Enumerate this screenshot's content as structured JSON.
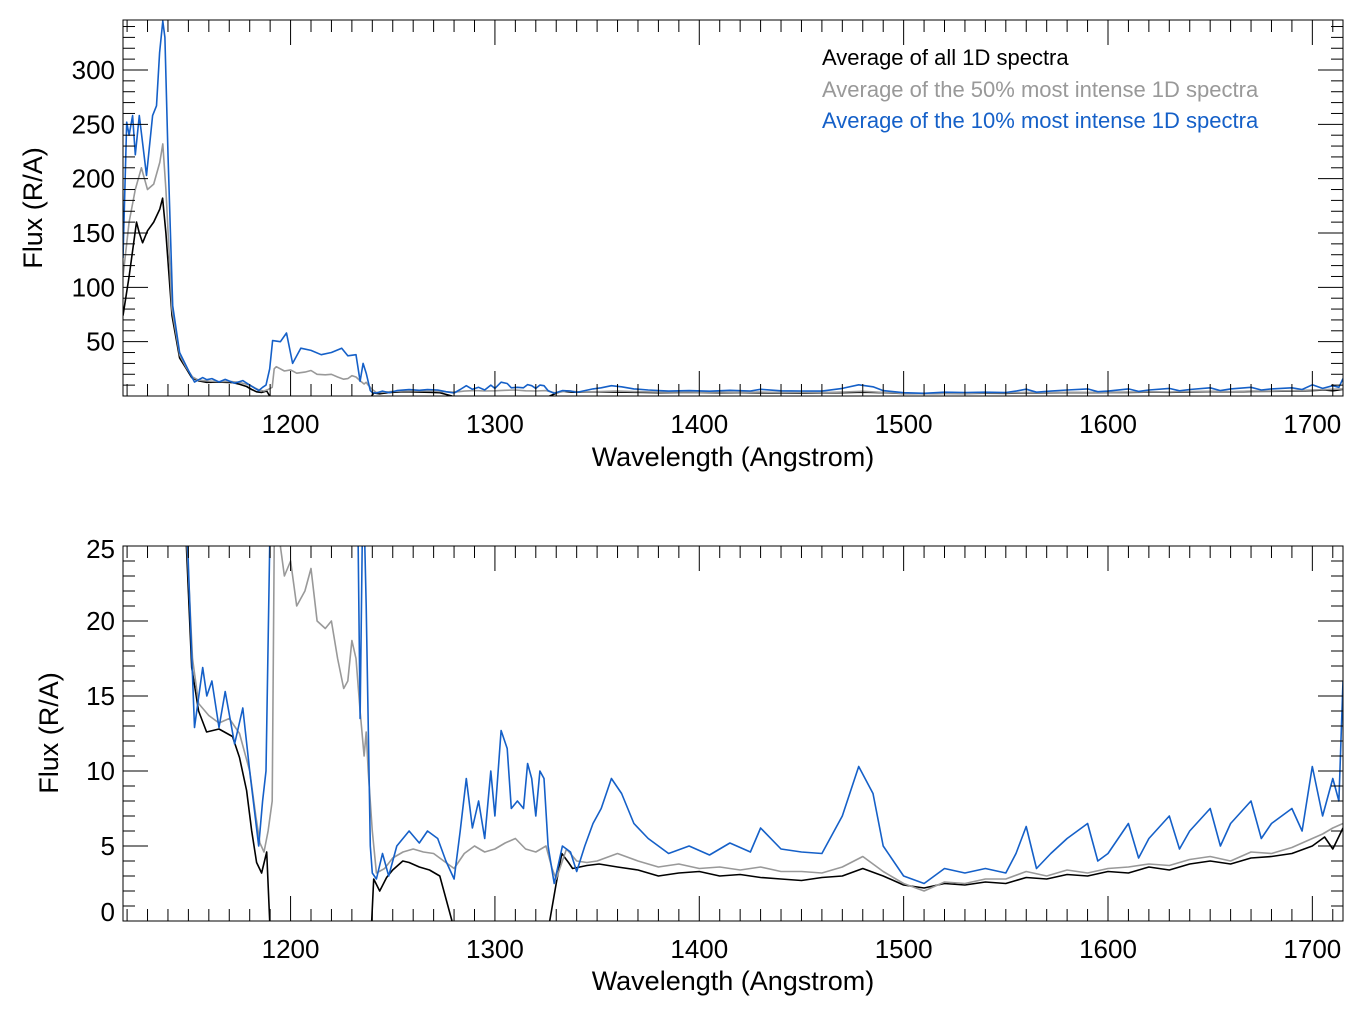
{
  "chart_data": [
    {
      "type": "line",
      "title": "",
      "xlabel": "Wavelength (Angstrom)",
      "ylabel": "Flux (R/A)",
      "xlim": [
        1118,
        1715
      ],
      "ylim": [
        0,
        346
      ],
      "xticks": [
        1200,
        1300,
        1400,
        1500,
        1600,
        1700
      ],
      "xtick_labels": [
        "1200",
        "1300",
        "1400",
        "1500",
        "1600",
        "1700"
      ],
      "yticks": [
        50,
        100,
        150,
        200,
        250,
        300
      ],
      "ytick_labels": [
        "50",
        "100",
        "150",
        "200",
        "250",
        "300"
      ],
      "x_minor_step": 10,
      "y_minor_step": 10,
      "legend_position": "top-right",
      "legend": [
        "Average of all 1D spectra",
        "Average of the 50% most intense 1D spectra",
        "Average of the 10% most intense 1D spectra"
      ]
    },
    {
      "type": "line",
      "title": "",
      "xlabel": "Wavelength (Angstrom)",
      "ylabel": "Flux (R/A)",
      "xlim": [
        1118,
        1715
      ],
      "ylim": [
        0,
        25
      ],
      "xticks": [
        1200,
        1300,
        1400,
        1500,
        1600,
        1700
      ],
      "xtick_labels": [
        "1200",
        "1300",
        "1400",
        "1500",
        "1600",
        "1700"
      ],
      "yticks": [
        0,
        5,
        10,
        15,
        20,
        25
      ],
      "ytick_labels": [
        "0",
        "5",
        "10",
        "15",
        "20",
        "25"
      ],
      "x_minor_step": 10,
      "y_minor_step": 1
    }
  ],
  "series": [
    {
      "name": "Average of all 1D spectra",
      "color": "#000000",
      "points": [
        [
          1118,
          74
        ],
        [
          1121,
          110
        ],
        [
          1124.6,
          160
        ],
        [
          1126,
          150
        ],
        [
          1127.6,
          141
        ],
        [
          1130,
          152
        ],
        [
          1133,
          160
        ],
        [
          1136,
          172
        ],
        [
          1137.4,
          182
        ],
        [
          1139,
          150
        ],
        [
          1142,
          74
        ],
        [
          1145.7,
          35
        ],
        [
          1149,
          25
        ],
        [
          1151.6,
          16.9
        ],
        [
          1155,
          14
        ],
        [
          1158.9,
          12.6
        ],
        [
          1165,
          12.8
        ],
        [
          1171.6,
          12.3
        ],
        [
          1175,
          10.9
        ],
        [
          1178.5,
          8.7
        ],
        [
          1181,
          6
        ],
        [
          1183.4,
          3.9
        ],
        [
          1185.8,
          3.2
        ],
        [
          1188.3,
          4.6
        ],
        [
          1189.8,
          0
        ],
        [
          1191,
          -8
        ],
        [
          1238,
          -8
        ],
        [
          1239.7,
          0
        ],
        [
          1240.7,
          2.8
        ],
        [
          1243.6,
          2.0
        ],
        [
          1247,
          2.9
        ],
        [
          1250,
          3.4
        ],
        [
          1254.9,
          4.0
        ],
        [
          1258,
          3.9
        ],
        [
          1263,
          3.6
        ],
        [
          1268,
          3.4
        ],
        [
          1273,
          3.0
        ],
        [
          1276,
          1.5
        ],
        [
          1279,
          0
        ],
        [
          1281,
          -6
        ],
        [
          1325,
          -6
        ],
        [
          1326.8,
          0
        ],
        [
          1330,
          2.5
        ],
        [
          1332.7,
          4.5
        ],
        [
          1336,
          3.9
        ],
        [
          1338,
          3.5
        ],
        [
          1345,
          3.7
        ],
        [
          1351,
          3.8
        ],
        [
          1360,
          3.6
        ],
        [
          1370,
          3.4
        ],
        [
          1380,
          3.0
        ],
        [
          1390,
          3.2
        ],
        [
          1400,
          3.3
        ],
        [
          1410,
          3.0
        ],
        [
          1420,
          3.1
        ],
        [
          1430,
          2.9
        ],
        [
          1440,
          2.8
        ],
        [
          1450,
          2.7
        ],
        [
          1460,
          2.9
        ],
        [
          1470,
          3.0
        ],
        [
          1480,
          3.5
        ],
        [
          1490,
          3.0
        ],
        [
          1500,
          2.4
        ],
        [
          1510,
          2.2
        ],
        [
          1520,
          2.5
        ],
        [
          1530,
          2.4
        ],
        [
          1540,
          2.6
        ],
        [
          1550,
          2.5
        ],
        [
          1560,
          2.9
        ],
        [
          1570,
          2.8
        ],
        [
          1580,
          3.1
        ],
        [
          1590,
          3.0
        ],
        [
          1600,
          3.3
        ],
        [
          1610,
          3.2
        ],
        [
          1620,
          3.6
        ],
        [
          1630,
          3.4
        ],
        [
          1640,
          3.8
        ],
        [
          1650,
          4.0
        ],
        [
          1660,
          3.8
        ],
        [
          1670,
          4.2
        ],
        [
          1680,
          4.3
        ],
        [
          1690,
          4.5
        ],
        [
          1700,
          5.0
        ],
        [
          1706,
          5.6
        ],
        [
          1710,
          4.8
        ],
        [
          1715,
          6.2
        ]
      ]
    },
    {
      "name": "Average of the 50% most intense 1D spectra",
      "color": "#999999",
      "points": [
        [
          1118,
          110
        ],
        [
          1121,
          160
        ],
        [
          1124,
          190
        ],
        [
          1127,
          210
        ],
        [
          1130,
          190
        ],
        [
          1133,
          195
        ],
        [
          1136,
          215
        ],
        [
          1137.5,
          232
        ],
        [
          1139,
          190
        ],
        [
          1142,
          80
        ],
        [
          1145.7,
          38
        ],
        [
          1149,
          26
        ],
        [
          1152,
          17.5
        ],
        [
          1155,
          14.5
        ],
        [
          1160,
          13.7
        ],
        [
          1165,
          13.2
        ],
        [
          1170,
          13.5
        ],
        [
          1175,
          12.5
        ],
        [
          1180,
          10
        ],
        [
          1183,
          7
        ],
        [
          1185,
          5.2
        ],
        [
          1187,
          4.6
        ],
        [
          1189,
          6
        ],
        [
          1191,
          8
        ],
        [
          1192,
          25
        ],
        [
          1193,
          27
        ],
        [
          1197,
          23
        ],
        [
          1200,
          24
        ],
        [
          1203,
          21
        ],
        [
          1207,
          22
        ],
        [
          1210,
          23.5
        ],
        [
          1213,
          20
        ],
        [
          1217,
          19.5
        ],
        [
          1220,
          20
        ],
        [
          1223,
          17.5
        ],
        [
          1226,
          15.5
        ],
        [
          1228,
          16
        ],
        [
          1230,
          18.7
        ],
        [
          1232,
          17.5
        ],
        [
          1234,
          14
        ],
        [
          1236,
          11
        ],
        [
          1237,
          12.6
        ],
        [
          1238,
          10
        ],
        [
          1240,
          6
        ],
        [
          1242,
          3.2
        ],
        [
          1246,
          3.5
        ],
        [
          1250,
          4.2
        ],
        [
          1255,
          4.6
        ],
        [
          1260,
          4.8
        ],
        [
          1265,
          4.6
        ],
        [
          1270,
          4.5
        ],
        [
          1275,
          4.0
        ],
        [
          1280,
          3.5
        ],
        [
          1285,
          4.5
        ],
        [
          1290,
          5.0
        ],
        [
          1295,
          4.6
        ],
        [
          1300,
          4.8
        ],
        [
          1305,
          5.2
        ],
        [
          1310,
          5.5
        ],
        [
          1315,
          4.8
        ],
        [
          1320,
          4.6
        ],
        [
          1325,
          5.0
        ],
        [
          1328,
          3.5
        ],
        [
          1330,
          2.8
        ],
        [
          1335,
          4.8
        ],
        [
          1340,
          4.0
        ],
        [
          1345,
          3.9
        ],
        [
          1350,
          4.0
        ],
        [
          1360,
          4.5
        ],
        [
          1370,
          4.0
        ],
        [
          1380,
          3.6
        ],
        [
          1390,
          3.8
        ],
        [
          1400,
          3.5
        ],
        [
          1410,
          3.6
        ],
        [
          1420,
          3.4
        ],
        [
          1430,
          3.6
        ],
        [
          1440,
          3.3
        ],
        [
          1450,
          3.3
        ],
        [
          1460,
          3.2
        ],
        [
          1470,
          3.6
        ],
        [
          1480,
          4.3
        ],
        [
          1490,
          3.3
        ],
        [
          1500,
          2.5
        ],
        [
          1510,
          2.0
        ],
        [
          1520,
          2.6
        ],
        [
          1530,
          2.5
        ],
        [
          1540,
          2.8
        ],
        [
          1550,
          2.8
        ],
        [
          1560,
          3.3
        ],
        [
          1570,
          3.0
        ],
        [
          1580,
          3.4
        ],
        [
          1590,
          3.2
        ],
        [
          1600,
          3.5
        ],
        [
          1610,
          3.6
        ],
        [
          1620,
          3.8
        ],
        [
          1630,
          3.7
        ],
        [
          1640,
          4.1
        ],
        [
          1650,
          4.3
        ],
        [
          1660,
          4.0
        ],
        [
          1670,
          4.6
        ],
        [
          1680,
          4.5
        ],
        [
          1690,
          4.9
        ],
        [
          1700,
          5.5
        ],
        [
          1705,
          5.8
        ],
        [
          1710,
          6.2
        ],
        [
          1715,
          6.5
        ]
      ]
    },
    {
      "name": "Average of the 10% most intense 1D spectra",
      "color": "#1560c8",
      "points": [
        [
          1118,
          127
        ],
        [
          1119.8,
          252
        ],
        [
          1121,
          240
        ],
        [
          1122.7,
          258
        ],
        [
          1124,
          222
        ],
        [
          1126,
          258
        ],
        [
          1129.5,
          203
        ],
        [
          1132.5,
          258
        ],
        [
          1134.4,
          267
        ],
        [
          1135.9,
          316
        ],
        [
          1137.5,
          345
        ],
        [
          1138.5,
          330
        ],
        [
          1140,
          222
        ],
        [
          1142.3,
          83
        ],
        [
          1145.7,
          40
        ],
        [
          1149.1,
          27
        ],
        [
          1151,
          20
        ],
        [
          1153,
          12.9
        ],
        [
          1157,
          16.9
        ],
        [
          1159,
          15
        ],
        [
          1161.5,
          16
        ],
        [
          1165,
          12.9
        ],
        [
          1168,
          15.3
        ],
        [
          1172.6,
          11.8
        ],
        [
          1176.6,
          14.2
        ],
        [
          1180,
          10
        ],
        [
          1184.4,
          5
        ],
        [
          1186.3,
          8
        ],
        [
          1188,
          10
        ],
        [
          1189.8,
          25
        ],
        [
          1191.2,
          51
        ],
        [
          1195,
          50
        ],
        [
          1198,
          58
        ],
        [
          1201,
          30
        ],
        [
          1205,
          44
        ],
        [
          1210,
          42
        ],
        [
          1215,
          38
        ],
        [
          1220,
          40
        ],
        [
          1225,
          44
        ],
        [
          1228,
          37
        ],
        [
          1232,
          38
        ],
        [
          1234,
          13.5
        ],
        [
          1235.5,
          30
        ],
        [
          1237,
          21
        ],
        [
          1239,
          5
        ],
        [
          1240,
          3.2
        ],
        [
          1242,
          2.8
        ],
        [
          1245,
          4.5
        ],
        [
          1248,
          3
        ],
        [
          1252,
          5
        ],
        [
          1258,
          6
        ],
        [
          1263,
          5.2
        ],
        [
          1267,
          6.0
        ],
        [
          1272,
          5.5
        ],
        [
          1276,
          4.0
        ],
        [
          1280,
          2.8
        ],
        [
          1283,
          6
        ],
        [
          1286,
          9.5
        ],
        [
          1289,
          6.2
        ],
        [
          1292,
          8
        ],
        [
          1295,
          5.5
        ],
        [
          1298,
          10
        ],
        [
          1300,
          7
        ],
        [
          1303,
          12.7
        ],
        [
          1306,
          11.5
        ],
        [
          1308,
          7.5
        ],
        [
          1311,
          8
        ],
        [
          1314,
          7.5
        ],
        [
          1316,
          10.5
        ],
        [
          1318,
          9.5
        ],
        [
          1320,
          7
        ],
        [
          1322,
          10
        ],
        [
          1324,
          9.5
        ],
        [
          1326,
          5
        ],
        [
          1329,
          2.5
        ],
        [
          1333,
          5
        ],
        [
          1337,
          4.6
        ],
        [
          1340,
          3.3
        ],
        [
          1344,
          5
        ],
        [
          1348,
          6.5
        ],
        [
          1352,
          7.5
        ],
        [
          1357,
          9.5
        ],
        [
          1362,
          8.5
        ],
        [
          1368,
          6.5
        ],
        [
          1375,
          5.5
        ],
        [
          1385,
          4.5
        ],
        [
          1395,
          5.0
        ],
        [
          1405,
          4.4
        ],
        [
          1415,
          5.2
        ],
        [
          1425,
          4.6
        ],
        [
          1430,
          6.2
        ],
        [
          1440,
          4.8
        ],
        [
          1450,
          4.6
        ],
        [
          1460,
          4.5
        ],
        [
          1470,
          7
        ],
        [
          1478,
          10.3
        ],
        [
          1485,
          8.5
        ],
        [
          1490,
          5
        ],
        [
          1500,
          3
        ],
        [
          1510,
          2.5
        ],
        [
          1520,
          3.5
        ],
        [
          1530,
          3.2
        ],
        [
          1540,
          3.5
        ],
        [
          1550,
          3.2
        ],
        [
          1555,
          4.5
        ],
        [
          1560,
          6.3
        ],
        [
          1565,
          3.5
        ],
        [
          1572,
          4.5
        ],
        [
          1580,
          5.5
        ],
        [
          1590,
          6.5
        ],
        [
          1595,
          4.0
        ],
        [
          1600,
          4.5
        ],
        [
          1610,
          6.5
        ],
        [
          1615,
          4.2
        ],
        [
          1620,
          5.5
        ],
        [
          1630,
          7
        ],
        [
          1635,
          4.8
        ],
        [
          1640,
          6
        ],
        [
          1650,
          7.5
        ],
        [
          1655,
          5.0
        ],
        [
          1660,
          6.5
        ],
        [
          1670,
          8
        ],
        [
          1675,
          5.5
        ],
        [
          1680,
          6.5
        ],
        [
          1690,
          7.5
        ],
        [
          1695,
          6.0
        ],
        [
          1700,
          10.3
        ],
        [
          1705,
          7
        ],
        [
          1710,
          9.5
        ],
        [
          1713,
          8
        ],
        [
          1715,
          16
        ]
      ]
    }
  ]
}
